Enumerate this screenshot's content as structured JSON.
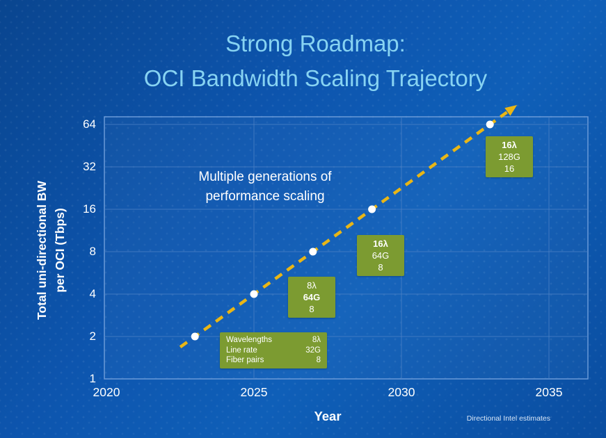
{
  "title": {
    "line1": "Strong Roadmap:",
    "line2": "OCI Bandwidth Scaling Trajectory"
  },
  "chart": {
    "xlabel": "Year",
    "ylabel_line1": "Total uni-directional BW",
    "ylabel_line2": "per OCI (Tbps)",
    "annotation_line1": "Multiple generations of",
    "annotation_line2": "performance scaling"
  },
  "chart_data": {
    "type": "line",
    "title": "Strong Roadmap: OCI Bandwidth Scaling Trajectory",
    "xlabel": "Year",
    "ylabel": "Total uni-directional BW per OCI (Tbps)",
    "x_ticks": [
      2020,
      2025,
      2030,
      2035
    ],
    "y_ticks": [
      1,
      2,
      4,
      8,
      16,
      32,
      64
    ],
    "y_scale": "log2",
    "xlim": [
      2020,
      2036.5
    ],
    "ylim": [
      1,
      64
    ],
    "grid_x": [
      2025,
      2030,
      2035
    ],
    "grid": "on",
    "line_style": "dashed-arrow",
    "points": [
      {
        "year": 2023,
        "tbps": 2
      },
      {
        "year": 2025,
        "tbps": 4
      },
      {
        "year": 2027,
        "tbps": 8
      },
      {
        "year": 2029,
        "tbps": 16
      },
      {
        "year": 2033,
        "tbps": 64
      }
    ],
    "annotation": "Multiple generations of performance scaling",
    "callouts": [
      {
        "style": "table",
        "rows": [
          {
            "label": "Wavelengths",
            "value": "8λ"
          },
          {
            "label": "Line rate",
            "value": "32G"
          },
          {
            "label": "Fiber pairs",
            "value": "8"
          }
        ]
      },
      {
        "style": "stack",
        "lines": [
          {
            "text": "8λ",
            "bold": false
          },
          {
            "text": "64G",
            "bold": true
          },
          {
            "text": "8",
            "bold": false
          }
        ]
      },
      {
        "style": "stack",
        "lines": [
          {
            "text": "16λ",
            "bold": true
          },
          {
            "text": "64G",
            "bold": false
          },
          {
            "text": "8",
            "bold": false
          }
        ]
      },
      {
        "style": "stack",
        "lines": [
          {
            "text": "16λ",
            "bold": true
          },
          {
            "text": "128G",
            "bold": false
          },
          {
            "text": "16",
            "bold": false
          }
        ]
      }
    ]
  },
  "colors": {
    "accent_line": "#E9B616",
    "callout_green": "#7C9B31",
    "title_blue": "#87D3F2",
    "grid_blue": "#6A9AD8",
    "point_dot": "#FFFFFF"
  },
  "footnote": "Directional Intel estimates"
}
